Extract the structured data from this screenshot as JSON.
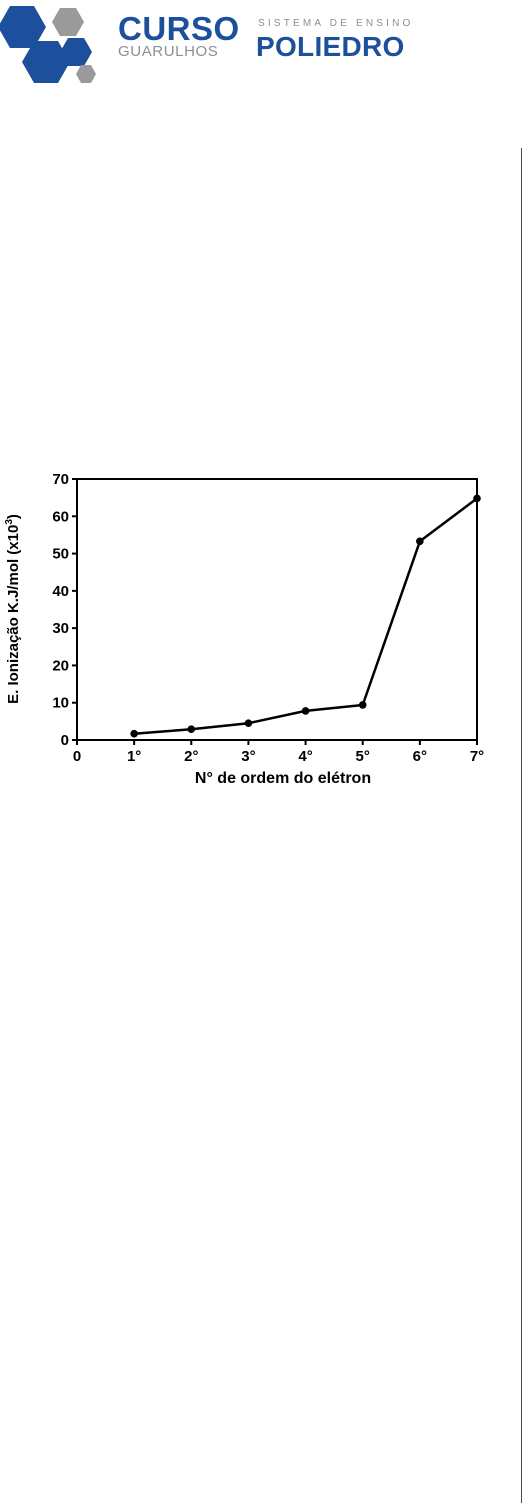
{
  "header": {
    "brand_left_top": "CURSO",
    "brand_left_bottom": "GUARULHOS",
    "brand_right_top": "SISTEMA DE ENSINO",
    "brand_right_bottom": "POLIEDRO",
    "colors": {
      "blue": "#1c4f9c",
      "gray": "#9a9a9a"
    }
  },
  "chart_data": {
    "type": "line",
    "title": "",
    "xlabel": "N° de ordem do elétron",
    "ylabel": "E. Ionização K.J/mol (x10",
    "ylabel_sup": "3",
    "ylabel_close": ")",
    "x_ticks": [
      "0",
      "1°",
      "2°",
      "3°",
      "4°",
      "5°",
      "6°",
      "7°"
    ],
    "y_ticks": [
      "0",
      "10",
      "20",
      "30",
      "40",
      "50",
      "60",
      "70"
    ],
    "xlim": [
      0,
      7
    ],
    "ylim": [
      0,
      70
    ],
    "grid": false,
    "series": [
      {
        "x": [
          1,
          2,
          3,
          4,
          5,
          6,
          7
        ],
        "values": [
          1.7,
          2.9,
          4.5,
          7.8,
          9.4,
          53.3,
          64.8
        ]
      }
    ]
  }
}
